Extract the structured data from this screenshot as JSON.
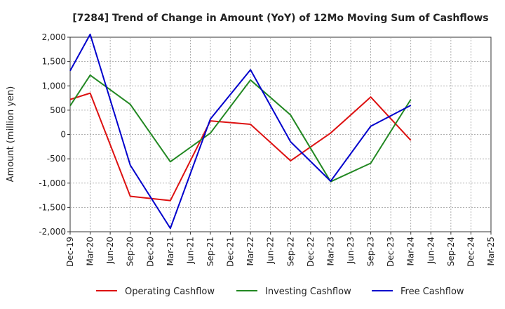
{
  "chart_data": {
    "type": "line",
    "title": "[7284]  Trend of Change in Amount (YoY) of 12Mo Moving Sum of Cashflows",
    "xlabel": "",
    "ylabel": "Amount (million yen)",
    "ylim": [
      -2000,
      2000
    ],
    "yticks": [
      2000,
      1500,
      1000,
      500,
      0,
      -500,
      -1000,
      -1500,
      -2000
    ],
    "ytick_labels": [
      "2,000",
      "1,500",
      "1,000",
      "500",
      "0",
      "-500",
      "-1,000",
      "-1,500",
      "-2,000"
    ],
    "categories": [
      "Dec-19",
      "Mar-20",
      "Jun-20",
      "Sep-20",
      "Dec-20",
      "Mar-21",
      "Jun-21",
      "Sep-21",
      "Dec-21",
      "Mar-22",
      "Jun-22",
      "Sep-22",
      "Dec-22",
      "Mar-23",
      "Jun-23",
      "Sep-23",
      "Dec-23",
      "Mar-24",
      "Jun-24",
      "Sep-24",
      "Dec-24",
      "Mar-25"
    ],
    "grid": true,
    "legend_position": "bottom",
    "series": [
      {
        "name": "Operating Cashflow",
        "color": "#dd1111",
        "values": [
          720,
          850,
          null,
          -1270,
          null,
          -1360,
          null,
          280,
          null,
          210,
          null,
          -540,
          null,
          30,
          null,
          770,
          null,
          -120,
          null,
          null,
          null,
          null
        ]
      },
      {
        "name": "Investing Cashflow",
        "color": "#228822",
        "values": [
          590,
          1220,
          null,
          620,
          null,
          -560,
          null,
          30,
          null,
          1120,
          null,
          400,
          null,
          -970,
          null,
          -590,
          null,
          720,
          null,
          null,
          null,
          null
        ]
      },
      {
        "name": "Free Cashflow",
        "color": "#0000cc",
        "values": [
          1310,
          2060,
          null,
          -630,
          null,
          -1930,
          null,
          320,
          null,
          1330,
          null,
          -150,
          null,
          -960,
          null,
          170,
          null,
          600,
          null,
          null,
          null,
          null
        ]
      }
    ]
  }
}
